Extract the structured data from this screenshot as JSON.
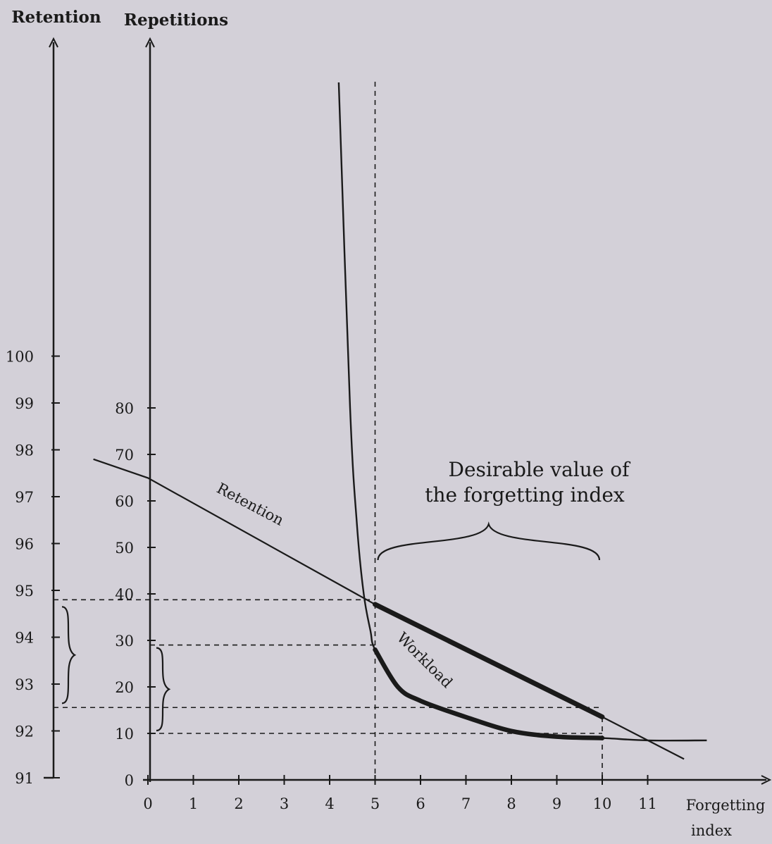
{
  "chart_data": {
    "type": "line",
    "x_label": [
      "Forgetting",
      "index"
    ],
    "x_ticks": [
      "0",
      "1",
      "2",
      "3",
      "4",
      "5",
      "6",
      "7",
      "8",
      "9",
      "10",
      "11"
    ],
    "retention_axis": {
      "label": "Retention",
      "range": [
        91,
        100
      ],
      "ticks": [
        "91",
        "92",
        "93",
        "94",
        "95",
        "96",
        "97",
        "98",
        "99",
        "100"
      ]
    },
    "repetitions_axis": {
      "label": "Repetitions",
      "range": [
        0,
        80
      ],
      "ticks": [
        "0",
        "10",
        "20",
        "30",
        "40",
        "50",
        "60",
        "70",
        "80"
      ]
    },
    "series": [
      {
        "name": "Retention",
        "axis": "retention",
        "points": [
          [
            -1.2,
            97.8
          ],
          [
            0,
            97.4
          ],
          [
            5,
            94.7
          ],
          [
            10,
            92.3
          ],
          [
            11.8,
            91.4
          ]
        ],
        "highlight": [
          5,
          10
        ]
      },
      {
        "name": "Workload",
        "axis": "repetitions",
        "points": [
          [
            4.2,
            150
          ],
          [
            4.45,
            80
          ],
          [
            4.6,
            55
          ],
          [
            4.75,
            40
          ],
          [
            4.9,
            32
          ],
          [
            5,
            28
          ],
          [
            5.5,
            20
          ],
          [
            6,
            17
          ],
          [
            7,
            13.5
          ],
          [
            8,
            10.5
          ],
          [
            9,
            9.3
          ],
          [
            10,
            9
          ],
          [
            11,
            8.5
          ],
          [
            12.3,
            8.5
          ]
        ],
        "highlight": [
          5,
          10
        ]
      }
    ],
    "annotation": [
      "Desirable value of",
      "the forgetting index"
    ],
    "desirable_range": [
      5,
      10
    ],
    "reference_levels": {
      "retention": [
        94.8,
        92.5
      ],
      "repetitions": [
        29,
        10
      ]
    }
  }
}
